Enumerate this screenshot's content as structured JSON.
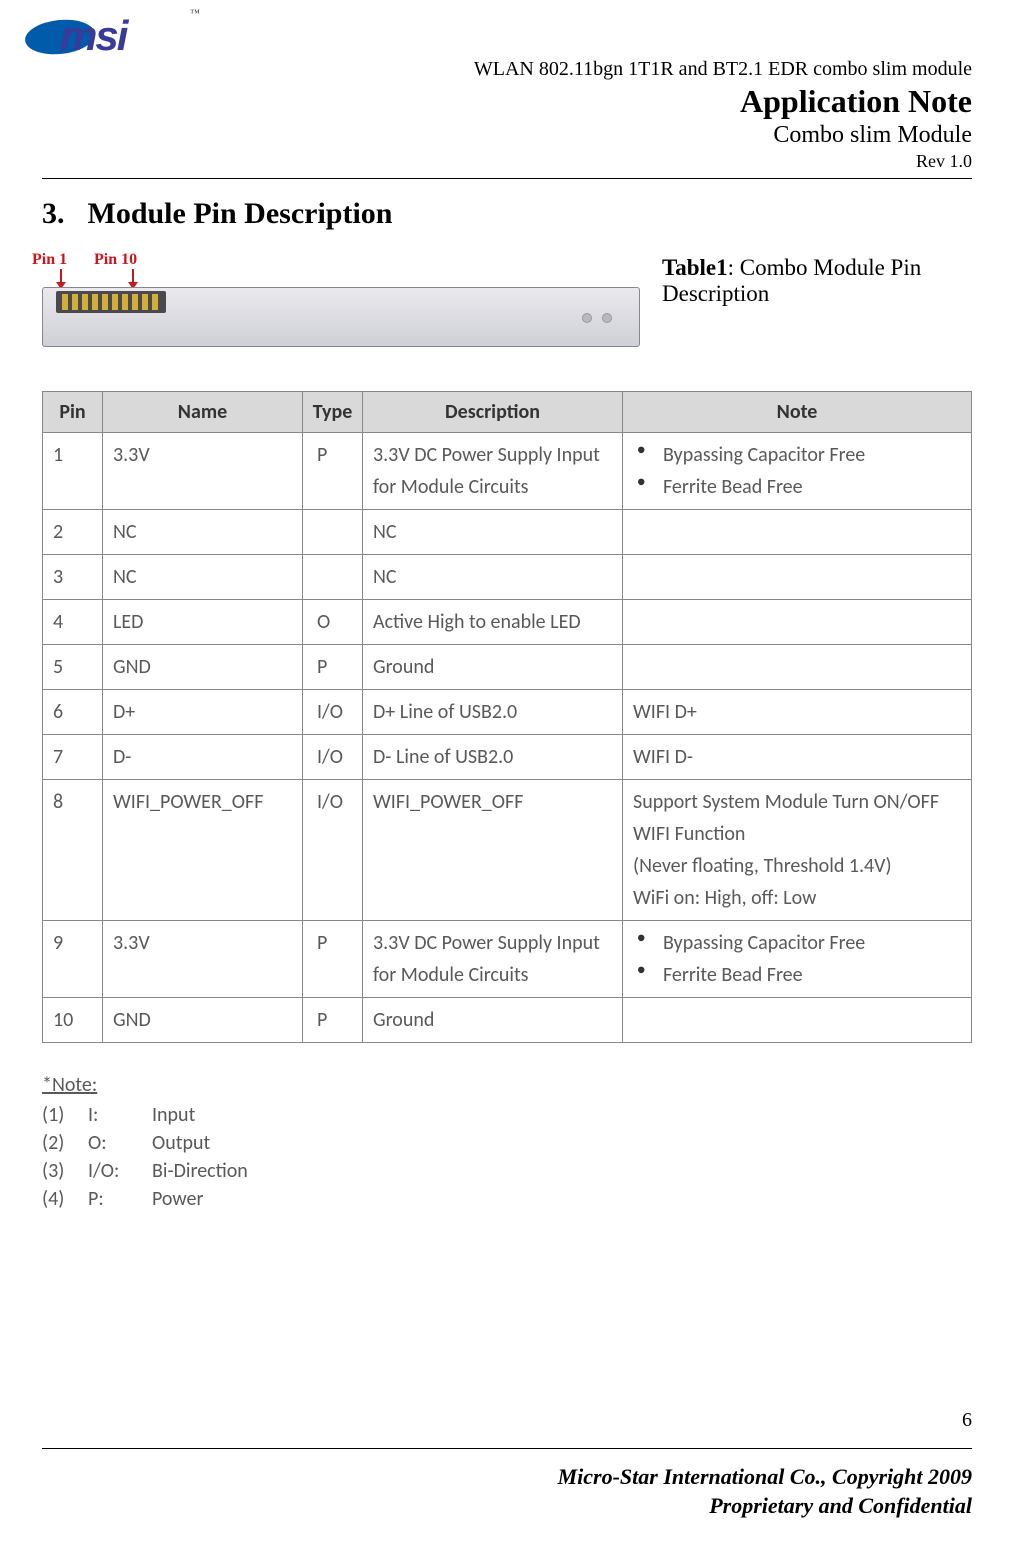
{
  "header": {
    "product": "WLAN 802.11bgn 1T1R and BT2.1 EDR combo slim module",
    "title": "Application Note",
    "subtitle": "Combo slim Module",
    "rev": "Rev 1.0"
  },
  "section": {
    "number": "3.",
    "title": "Module Pin Description"
  },
  "table_caption_label": "Table1",
  "table_caption_text": ": Combo Module Pin Description",
  "pin_labels": {
    "pin1": "Pin 1",
    "pin10": "Pin 10"
  },
  "table": {
    "columns": [
      "Pin",
      "Name",
      "Type",
      "Description",
      "Note"
    ],
    "header_bg": "#d9d9d9",
    "border_color": "#888888",
    "text_color": "#595959",
    "header_text_color": "#333333",
    "fontsize": 20,
    "rows": [
      {
        "pin": "1",
        "name": "3.3V",
        "type": "P",
        "desc": "3.3V DC Power Supply Input for Module Circuits",
        "notes": [
          "Bypassing Capacitor Free",
          "Ferrite Bead Free"
        ]
      },
      {
        "pin": "2",
        "name": "NC",
        "type": "",
        "desc": "NC",
        "notes": []
      },
      {
        "pin": "3",
        "name": "NC",
        "type": "",
        "desc": "NC",
        "notes": []
      },
      {
        "pin": "4",
        "name": "LED",
        "type": "O",
        "desc": "Active High to enable LED",
        "notes": []
      },
      {
        "pin": "5",
        "name": "GND",
        "type": "P",
        "desc": "Ground",
        "notes": []
      },
      {
        "pin": "6",
        "name": "D+",
        "type": "I/O",
        "desc": "D+ Line of USB2.0",
        "note_text": "WIFI D+"
      },
      {
        "pin": "7",
        "name": "D-",
        "type": "I/O",
        "desc": "D- Line of USB2.0",
        "note_text": "WIFI D-"
      },
      {
        "pin": "8",
        "name": "WIFI_POWER_OFF",
        "type": "I/O",
        "desc": "WIFI_POWER_OFF",
        "note_text": "Support System Module Turn ON/OFF WIFI Function\n(Never floating, Threshold 1.4V)\nWiFi on: High, off: Low"
      },
      {
        "pin": "9",
        "name": "3.3V",
        "type": "P",
        "desc": "3.3V DC Power Supply Input for Module Circuits",
        "notes": [
          "Bypassing Capacitor Free",
          "Ferrite Bead Free"
        ]
      },
      {
        "pin": "10",
        "name": "GND",
        "type": "P",
        "desc": "Ground",
        "notes": []
      }
    ]
  },
  "note_section": {
    "heading": "*Note:  ",
    "items": [
      {
        "idx": "(1)",
        "key": "I:",
        "val": "Input"
      },
      {
        "idx": "(2)",
        "key": "O:",
        "val": "Output"
      },
      {
        "idx": "(3)",
        "key": "I/O:",
        "val": "Bi-Direction"
      },
      {
        "idx": "(4)",
        "key": "P:",
        "val": "Power"
      }
    ]
  },
  "footer": {
    "pagenum": "6",
    "line1": "Micro-Star International Co., Copyright 2009",
    "line2": "Proprietary and Confidential"
  },
  "colors": {
    "red": "#c8171e",
    "logo_blue": "#005baa",
    "logo_text": "#3a3a99",
    "page_bg": "#ffffff"
  }
}
